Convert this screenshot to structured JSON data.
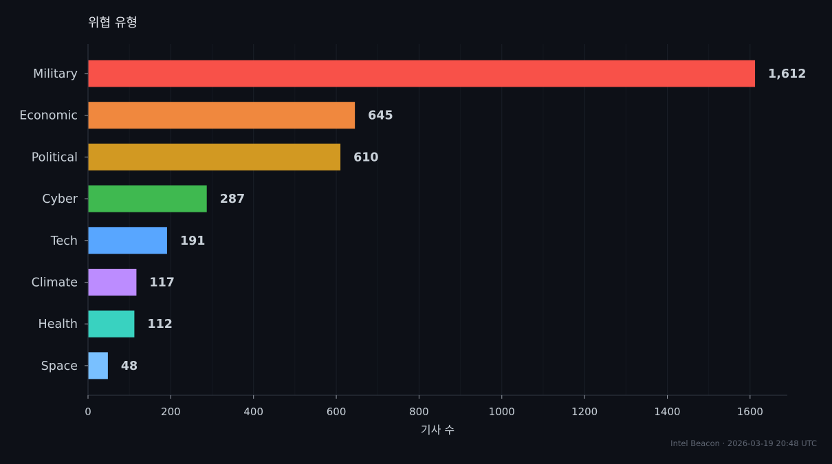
{
  "chart_data": {
    "type": "bar",
    "orientation": "horizontal",
    "title": "위협 유형",
    "xlabel": "기사 수",
    "ylabel": "",
    "xlim": [
      0,
      1690
    ],
    "x_ticks": [
      0,
      200,
      400,
      600,
      800,
      1000,
      1200,
      1400,
      1600
    ],
    "grid": true,
    "categories": [
      "Military",
      "Economic",
      "Political",
      "Cyber",
      "Tech",
      "Climate",
      "Health",
      "Space"
    ],
    "values": [
      1612,
      645,
      610,
      287,
      191,
      117,
      112,
      48
    ],
    "value_labels": [
      "1,612",
      "645",
      "610",
      "287",
      "191",
      "117",
      "112",
      "48"
    ],
    "colors": [
      "#f85149",
      "#f0883e",
      "#d29922",
      "#3fb950",
      "#58a6ff",
      "#bc8cff",
      "#39d2c0",
      "#79c0ff"
    ]
  },
  "footer": "Intel Beacon · 2026-03-19 20:48 UTC"
}
